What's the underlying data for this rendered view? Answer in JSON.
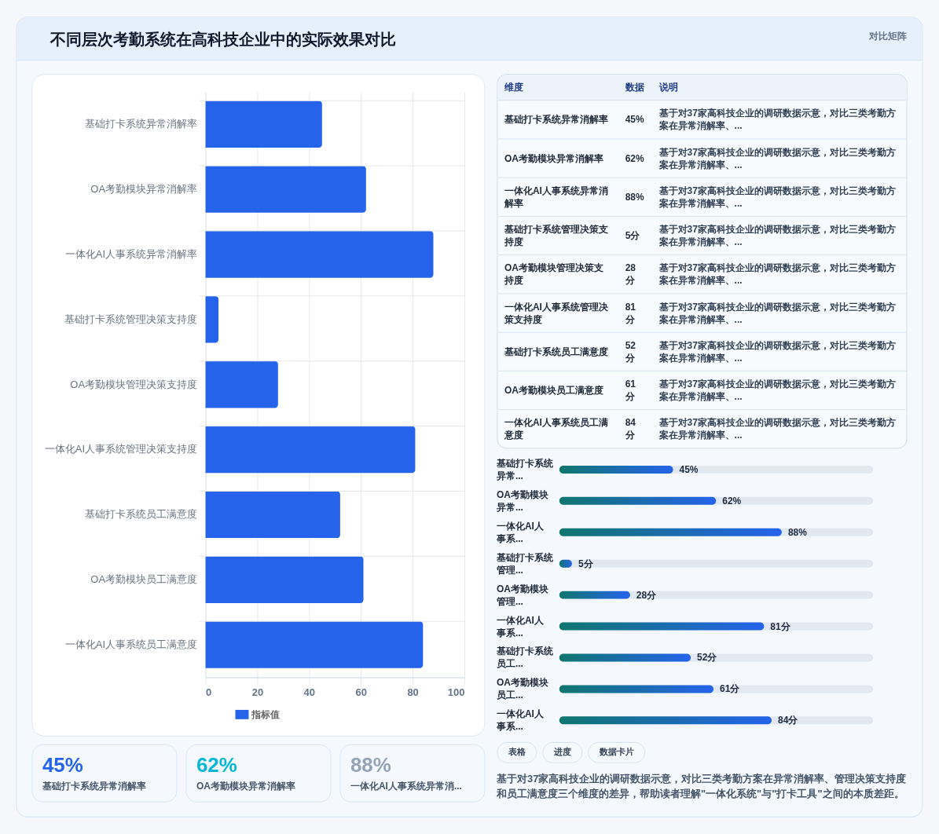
{
  "chart_data": [
    {
      "type": "bar",
      "orientation": "horizontal",
      "title": "不同层次考勤系统在高科技企业中的实际效果对比",
      "annotations": [
        "对比矩阵",
        "表格",
        "进度",
        "数据卡片",
        "基于对37家高科技企业的调研数据示意，对比三类考勤方案在异常消解率、管理决策支持度和员工满意度三个维度的差异，帮助读者理解\"一体化系统\"与\"打卡工具\"之间的本质差距。"
      ],
      "categories": [
        "基础打卡系统异常消解率",
        "OA考勤模块异常消解率",
        "一体化AI人事系统异常消解率",
        "基础打卡系统管理决策支持度",
        "OA考勤模块管理决策支持度",
        "一体化AI人事系统管理决策支持度",
        "基础打卡系统员工满意度",
        "OA考勤模块员工满意度",
        "一体化AI人事系统员工满意度"
      ],
      "series": [
        {
          "name": "指标值",
          "color": "#2563eb",
          "values": [
            45,
            62,
            88,
            5,
            28,
            81,
            52,
            61,
            84
          ]
        }
      ],
      "xlim": [
        0,
        100
      ],
      "xticks": [
        0,
        20,
        40,
        60,
        80,
        100
      ],
      "grid": true,
      "legend": "bottom"
    },
    {
      "type": "other",
      "categories": [
        "基础打卡系统异常消解率",
        "OA考勤模块异常消解率",
        "一体化AI人事系统异常消解率",
        "基础打卡系统管理决策支持度",
        "OA考勤模块管理决策支持度",
        "一体化AI人事系统管理决策支持度",
        "基础打卡系统员工满意度",
        "OA考勤模块员工满意度",
        "一体化AI人事系统员工满意度"
      ],
      "values": [
        45,
        62,
        88,
        5,
        28,
        81,
        52,
        61,
        84
      ],
      "value_labels": [
        "45%",
        "62%",
        "88%",
        "5分",
        "28分",
        "81分",
        "52分",
        "61分",
        "84分"
      ],
      "annotations": [
        "维度",
        "数据",
        "说明",
        "基于对37家高科技企业的调研数据示意，对比三类考勤方案在异常消解率、...",
        "基于对37家高科技企业的调研数据示意，对比三类考勤方案在异常消解率、...",
        "基于对37家高科技企业的调研数据示意，对比三类考勤方案在异常消解率、...",
        "基于对37家高科技企业的调研数据示意，对比三类考勤方案在异常消解率、...",
        "基于对37家高科技企业的调研数据示意，对比三类考勤方案在异常消解率、...",
        "基于对37家高科技企业的调研数据示意，对比三类考勤方案在异常消解率、...",
        "基于对37家高科技企业的调研数据示意，对比三类考勤方案在异常消解率、...",
        "基于对37家高科技企业的调研数据示意，对比三类考勤方案在异常消解率、...",
        "基于对37家高科技企业的调研数据示意，对比三类考勤方案在异常消解率、..."
      ]
    },
    {
      "type": "bar",
      "orientation": "horizontal",
      "categories": [
        "基础打卡系统异常...",
        "OA考勤模块异常...",
        "一体化AI人事系...",
        "基础打卡系统管理...",
        "OA考勤模块管理...",
        "一体化AI人事系...",
        "基础打卡系统员工...",
        "OA考勤模块员工...",
        "一体化AI人事系..."
      ],
      "values": [
        45,
        62,
        88,
        5,
        28,
        81,
        52,
        61,
        84
      ],
      "value_labels": [
        "45%",
        "62%",
        "88%",
        "5分",
        "28分",
        "81分",
        "52分",
        "61分",
        "84分"
      ],
      "color": "#2563eb",
      "tick_labels": "y"
    },
    {
      "type": "other",
      "categories": [
        "基础打卡系统异常消解率",
        "OA考勤模块异常消解率",
        "一体化AI人事系统异常消..."
      ],
      "values": [
        45,
        62,
        88
      ],
      "value_labels": [
        "45%",
        "62%",
        "88%"
      ],
      "colors": [
        "#2563eb",
        "#06b6d4",
        "#94a3b8"
      ]
    }
  ]
}
